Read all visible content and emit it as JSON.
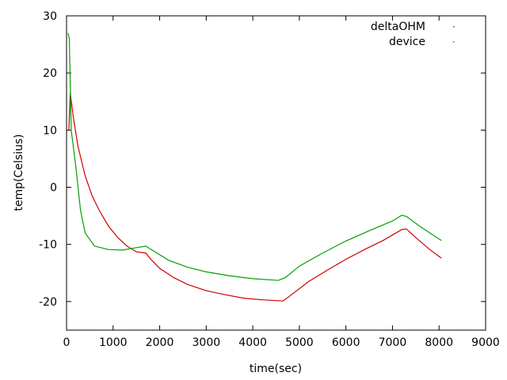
{
  "chart_data": {
    "type": "line",
    "title": "",
    "xlabel": "time(sec)",
    "ylabel": "temp(Celsius)",
    "xlim": [
      0,
      9000
    ],
    "ylim": [
      -25,
      30
    ],
    "xticks": [
      0,
      1000,
      2000,
      3000,
      4000,
      5000,
      6000,
      7000,
      8000,
      9000
    ],
    "yticks": [
      -20,
      -10,
      0,
      10,
      20,
      30
    ],
    "grid": false,
    "legend": "top-right",
    "series": [
      {
        "name": "deltaOHM",
        "color": "#cc0000",
        "points": [
          [
            50,
            10
          ],
          [
            80,
            16.5
          ],
          [
            150,
            12
          ],
          [
            250,
            7
          ],
          [
            400,
            2
          ],
          [
            550,
            -1.5
          ],
          [
            700,
            -4
          ],
          [
            900,
            -6.8
          ],
          [
            1100,
            -8.8
          ],
          [
            1300,
            -10.3
          ],
          [
            1500,
            -11.3
          ],
          [
            1700,
            -11.5
          ],
          [
            1800,
            -12.5
          ],
          [
            2000,
            -14.2
          ],
          [
            2300,
            -15.8
          ],
          [
            2600,
            -17
          ],
          [
            3000,
            -18.1
          ],
          [
            3400,
            -18.8
          ],
          [
            3800,
            -19.4
          ],
          [
            4200,
            -19.7
          ],
          [
            4650,
            -19.9
          ],
          [
            4800,
            -19
          ],
          [
            5200,
            -16.5
          ],
          [
            5600,
            -14.5
          ],
          [
            6000,
            -12.6
          ],
          [
            6400,
            -10.9
          ],
          [
            6800,
            -9.3
          ],
          [
            7200,
            -7.4
          ],
          [
            7300,
            -7.3
          ],
          [
            7500,
            -8.8
          ],
          [
            7800,
            -10.9
          ],
          [
            8050,
            -12.4
          ]
        ]
      },
      {
        "name": "device",
        "color": "#00a000",
        "points": [
          [
            30,
            27
          ],
          [
            60,
            26
          ],
          [
            100,
            10
          ],
          [
            200,
            3.5
          ],
          [
            300,
            -4
          ],
          [
            400,
            -8
          ],
          [
            600,
            -10.3
          ],
          [
            900,
            -10.9
          ],
          [
            1200,
            -11
          ],
          [
            1400,
            -10.7
          ],
          [
            1700,
            -10.3
          ],
          [
            1900,
            -11.3
          ],
          [
            2200,
            -12.8
          ],
          [
            2600,
            -14
          ],
          [
            3000,
            -14.8
          ],
          [
            3500,
            -15.5
          ],
          [
            4000,
            -16
          ],
          [
            4550,
            -16.3
          ],
          [
            4700,
            -15.8
          ],
          [
            5000,
            -13.8
          ],
          [
            5500,
            -11.5
          ],
          [
            6000,
            -9.4
          ],
          [
            6500,
            -7.6
          ],
          [
            7000,
            -5.9
          ],
          [
            7200,
            -4.9
          ],
          [
            7300,
            -5.1
          ],
          [
            7600,
            -6.9
          ],
          [
            8050,
            -9.3
          ]
        ]
      }
    ]
  }
}
